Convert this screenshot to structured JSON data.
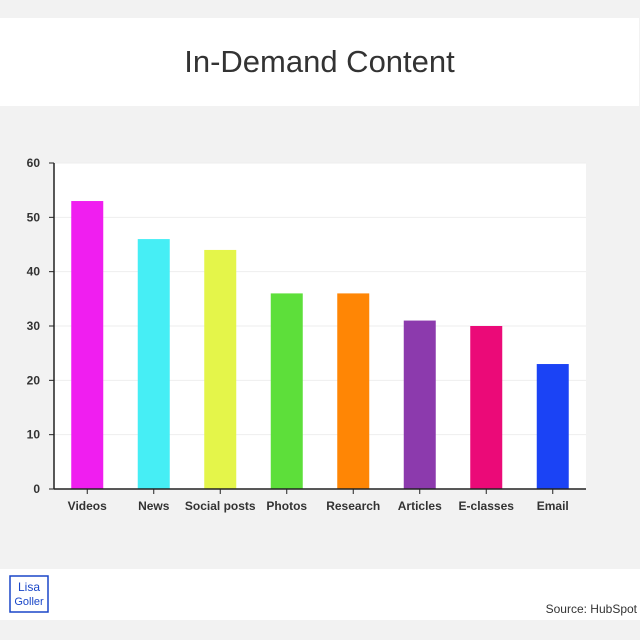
{
  "header": {
    "title": "In-Demand Content"
  },
  "footer": {
    "logo_line1": "Lisa",
    "logo_line2": "Goller",
    "source": "Source: HubSpot"
  },
  "colors": {
    "background": "#f2f2f2",
    "panel": "#ffffff",
    "logo_blue": "#1a47c8"
  },
  "chart_data": {
    "type": "bar",
    "title": "In-Demand Content",
    "xlabel": "",
    "ylabel": "",
    "ylim": [
      0,
      60
    ],
    "yticks": [
      0,
      10,
      20,
      30,
      40,
      50,
      60
    ],
    "grid": true,
    "categories": [
      "Videos",
      "News",
      "Social posts",
      "Photos",
      "Research",
      "Articles",
      "E-classes",
      "Email"
    ],
    "values": [
      53,
      46,
      44,
      36,
      36,
      31,
      30,
      23
    ],
    "bar_colors": [
      "#f01ef0",
      "#46eef5",
      "#e4f54a",
      "#5ddf3a",
      "#ff8605",
      "#8c3aad",
      "#eb0a78",
      "#1b43f5"
    ]
  }
}
